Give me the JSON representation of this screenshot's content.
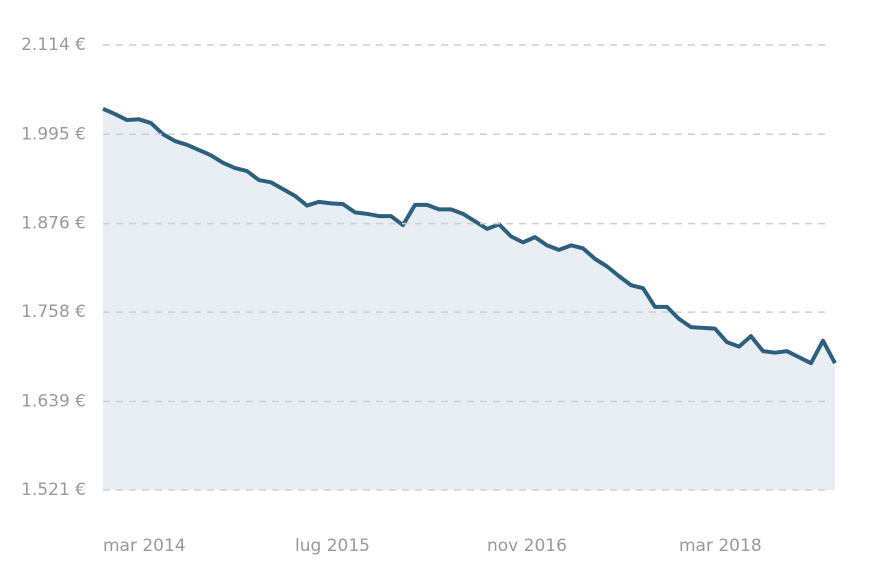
{
  "chart_data": {
    "type": "area",
    "categories": [
      "mar 2014",
      null,
      null,
      null,
      null,
      null,
      null,
      null,
      null,
      null,
      null,
      null,
      null,
      null,
      null,
      null,
      "lug 2015",
      null,
      null,
      null,
      null,
      null,
      null,
      null,
      null,
      null,
      null,
      null,
      null,
      null,
      null,
      null,
      "nov 2016",
      null,
      null,
      null,
      null,
      null,
      null,
      null,
      null,
      null,
      null,
      null,
      null,
      null,
      null,
      null,
      "mar 2018",
      null,
      null,
      null,
      null,
      null,
      null,
      null,
      null,
      null,
      null,
      null,
      null,
      null
    ],
    "series": [
      {
        "color": "#2d5f7e",
        "fill": "#e8eef3",
        "values": [
          2029,
          2022,
          2014,
          2015,
          2010,
          1995,
          1986,
          1981,
          1974,
          1967,
          1957,
          1950,
          1946,
          1934,
          1931,
          1922,
          1913,
          1900,
          1905,
          1903,
          1902,
          1891,
          1889,
          1886,
          1886,
          1874,
          1901,
          1901,
          1895,
          1895,
          1889,
          1879,
          1869,
          1875,
          1859,
          1851,
          1858,
          1847,
          1841,
          1847,
          1843,
          1829,
          1819,
          1806,
          1794,
          1790,
          1765,
          1765,
          1749,
          1738,
          1737,
          1736,
          1718,
          1712,
          1726,
          1706,
          1704,
          1706,
          1698,
          1690,
          1720,
          1690
        ]
      }
    ],
    "ylim": [
      1521,
      2114
    ],
    "yticks": [
      {
        "value": 1521,
        "label": "1.521 €"
      },
      {
        "value": 1639,
        "label": "1.639 €"
      },
      {
        "value": 1758,
        "label": "1.758 €"
      },
      {
        "value": 1876,
        "label": "1.876 €"
      },
      {
        "value": 1995,
        "label": "1.995 €"
      },
      {
        "value": 2114,
        "label": "2.114 €"
      }
    ],
    "grid": true
  }
}
